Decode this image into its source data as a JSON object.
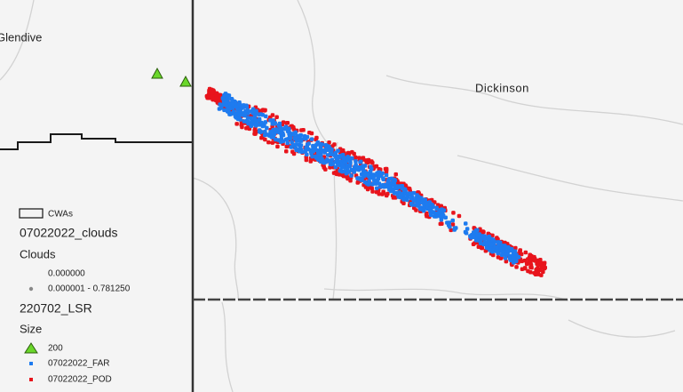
{
  "map": {
    "places": [
      "Glendive",
      "Dickinson"
    ],
    "legend": {
      "cwa_label": "CWAs",
      "clouds_layer": "07022022_clouds",
      "clouds_field": "Clouds",
      "clouds_classes": [
        "0.000000",
        "0.000001 - 0.781250"
      ],
      "lsr_layer": "220702_LSR",
      "lsr_field": "Size",
      "lsr_size": "200",
      "far_label": "07022022_FAR",
      "pod_label": "07022022_POD"
    }
  }
}
